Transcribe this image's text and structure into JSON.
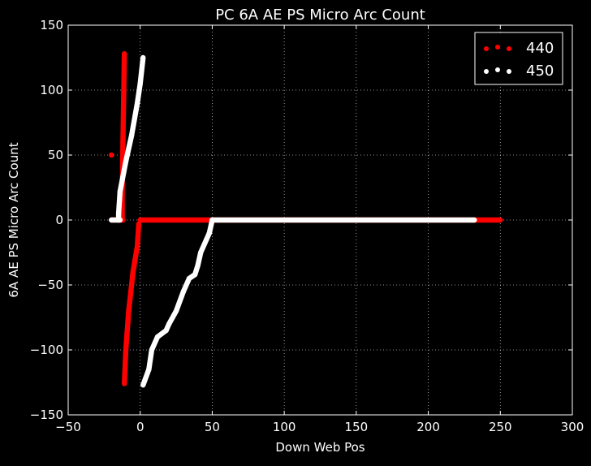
{
  "chart_data": {
    "type": "scatter",
    "title": "PC 6A AE PS Micro Arc Count",
    "xlabel": "Down Web Pos",
    "ylabel": "6A AE PS Micro Arc Count",
    "xlim": [
      -50,
      300
    ],
    "ylim": [
      -150,
      150
    ],
    "x_ticks": [
      -50,
      0,
      50,
      100,
      150,
      200,
      250,
      300
    ],
    "y_ticks": [
      -150,
      -100,
      -50,
      0,
      50,
      100,
      150
    ],
    "x_tick_labels": [
      "−50",
      "0",
      "50",
      "100",
      "150",
      "200",
      "250",
      "300"
    ],
    "y_tick_labels": [
      "−150",
      "−100",
      "−50",
      "0",
      "50",
      "100",
      "150"
    ],
    "grid": true,
    "legend_position": "top-right",
    "background": "#000000",
    "foreground": "#ffffff",
    "series": [
      {
        "name": "440",
        "color": "#ff0000",
        "segments": [
          {
            "from": [
              -20,
              0
            ],
            "to": [
              -12,
              0
            ]
          },
          {
            "from": [
              -12.5,
              0
            ],
            "to": [
              -12.5,
              20
            ]
          },
          {
            "from": [
              -12.5,
              20
            ],
            "to": [
              -12,
              60
            ]
          },
          {
            "from": [
              -12,
              60
            ],
            "to": [
              -11,
              128
            ]
          },
          {
            "from": [
              -1,
              -3
            ],
            "to": [
              -2,
              -20
            ]
          },
          {
            "from": [
              -2,
              -20
            ],
            "to": [
              -5,
              -40
            ]
          },
          {
            "from": [
              -5,
              -40
            ],
            "to": [
              -6,
              -50
            ]
          },
          {
            "from": [
              -6,
              -50
            ],
            "to": [
              -8,
              -70
            ]
          },
          {
            "from": [
              -8,
              -70
            ],
            "to": [
              -9,
              -85
            ]
          },
          {
            "from": [
              -9,
              -85
            ],
            "to": [
              -10,
              -100
            ]
          },
          {
            "from": [
              -10,
              -100
            ],
            "to": [
              -11,
              -126
            ]
          },
          {
            "from": [
              0,
              0
            ],
            "to": [
              250,
              0
            ]
          }
        ],
        "points": [
          [
            -20,
            50
          ]
        ]
      },
      {
        "name": "450",
        "color": "#ffffff",
        "segments": [
          {
            "from": [
              -20,
              0
            ],
            "to": [
              -14,
              0
            ]
          },
          {
            "from": [
              -15,
              0
            ],
            "to": [
              -15,
              5
            ]
          },
          {
            "from": [
              -15,
              5
            ],
            "to": [
              -14,
              22
            ]
          },
          {
            "from": [
              -14,
              22
            ],
            "to": [
              -10,
              45
            ]
          },
          {
            "from": [
              -10,
              45
            ],
            "to": [
              -6,
              65
            ]
          },
          {
            "from": [
              -6,
              65
            ],
            "to": [
              -2,
              90
            ]
          },
          {
            "from": [
              -2,
              90
            ],
            "to": [
              0,
              105
            ]
          },
          {
            "from": [
              0,
              105
            ],
            "to": [
              2,
              125
            ]
          },
          {
            "from": [
              2,
              -127
            ],
            "to": [
              6,
              -115
            ]
          },
          {
            "from": [
              6,
              -115
            ],
            "to": [
              8,
              -100
            ]
          },
          {
            "from": [
              8,
              -100
            ],
            "to": [
              12,
              -90
            ]
          },
          {
            "from": [
              12,
              -90
            ],
            "to": [
              18,
              -85
            ]
          },
          {
            "from": [
              18,
              -85
            ],
            "to": [
              20,
              -80
            ]
          },
          {
            "from": [
              20,
              -80
            ],
            "to": [
              25,
              -70
            ]
          },
          {
            "from": [
              25,
              -70
            ],
            "to": [
              30,
              -55
            ]
          },
          {
            "from": [
              30,
              -55
            ],
            "to": [
              34,
              -45
            ]
          },
          {
            "from": [
              34,
              -45
            ],
            "to": [
              38,
              -42
            ]
          },
          {
            "from": [
              38,
              -42
            ],
            "to": [
              40,
              -35
            ]
          },
          {
            "from": [
              40,
              -35
            ],
            "to": [
              42,
              -25
            ]
          },
          {
            "from": [
              42,
              -25
            ],
            "to": [
              46,
              -15
            ]
          },
          {
            "from": [
              46,
              -15
            ],
            "to": [
              48,
              -10
            ]
          },
          {
            "from": [
              48,
              -10
            ],
            "to": [
              50,
              0
            ]
          },
          {
            "from": [
              50,
              0
            ],
            "to": [
              232,
              0
            ]
          }
        ],
        "points": []
      }
    ]
  }
}
